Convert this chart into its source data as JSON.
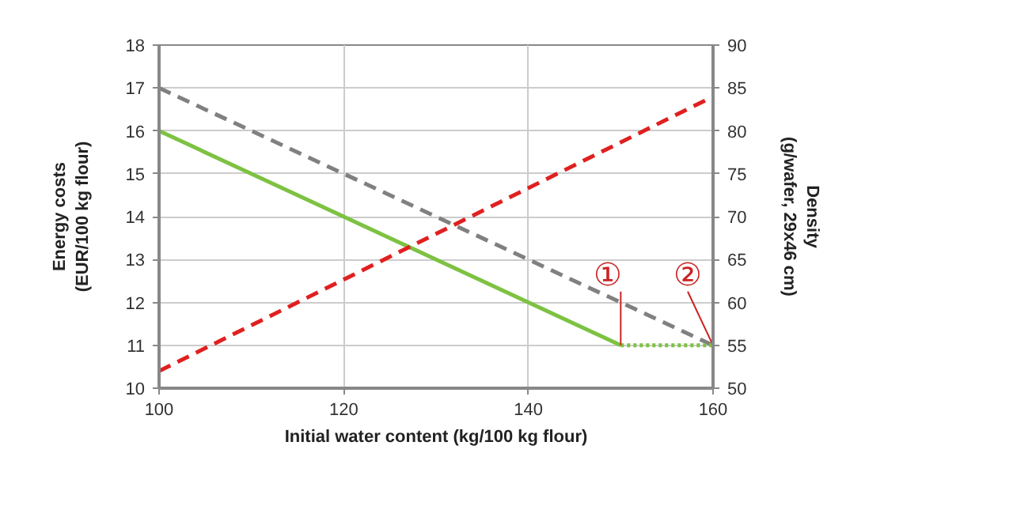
{
  "chart_data": {
    "type": "line",
    "xlabel": "Initial water content (kg/100 kg flour)",
    "ylabel": "Energy costs\n(EUR/100 kg flour)",
    "y2label": "Density\n(g/wafer, 29x46 cm)",
    "xlim": [
      100,
      160
    ],
    "xticks": [
      100,
      120,
      140,
      160
    ],
    "ylim": [
      10,
      18
    ],
    "yticks": [
      10,
      11,
      12,
      13,
      14,
      15,
      16,
      17,
      18
    ],
    "y2lim": [
      50,
      90
    ],
    "y2ticks": [
      50,
      55,
      60,
      65,
      70,
      75,
      80,
      85,
      90
    ],
    "grid": true,
    "series": [
      {
        "x": [
          100,
          160
        ],
        "values": [
          17,
          11
        ],
        "color": "#808080",
        "line_style": "dashed"
      },
      {
        "x": [
          100,
          150
        ],
        "values": [
          16,
          11
        ],
        "color": "#7dc242",
        "line_style": "solid"
      },
      {
        "x": [
          150,
          160
        ],
        "values": [
          11,
          11
        ],
        "color": "#7dc242",
        "line_style": "dotted"
      },
      {
        "x": [
          100,
          160
        ],
        "values": [
          52,
          84
        ],
        "color": "#e02020",
        "line_style": "dashed",
        "axis": "y2"
      }
    ],
    "annotations": [
      {
        "text": "①",
        "x": 150,
        "y": 11
      },
      {
        "text": "②",
        "x": 160,
        "y": 11
      }
    ]
  }
}
